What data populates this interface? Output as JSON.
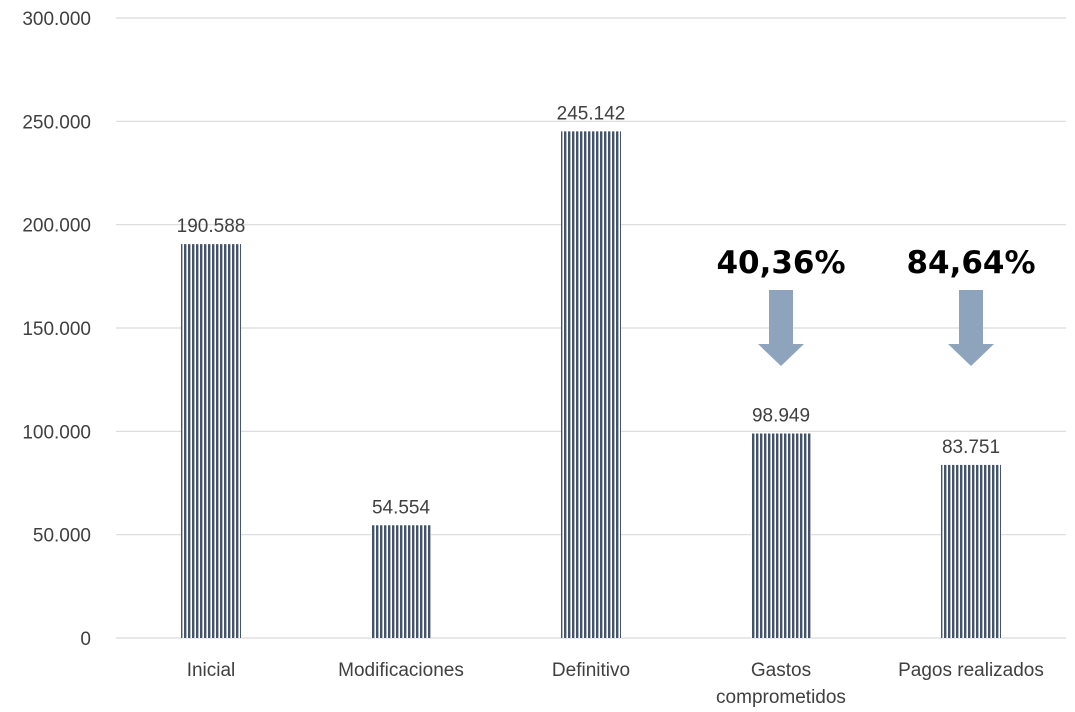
{
  "chart_data": {
    "type": "bar",
    "categories": [
      "Inicial",
      "Modificaciones",
      "Definitivo",
      "Gastos comprometidos",
      "Pagos realizados"
    ],
    "values": [
      190588,
      54554,
      245142,
      98949,
      83751
    ],
    "data_labels": [
      "190.588",
      "54.554",
      "245.142",
      "98.949",
      "83.751"
    ],
    "ylim": [
      0,
      300000
    ],
    "yticks": [
      0,
      50000,
      100000,
      150000,
      200000,
      250000,
      300000
    ],
    "ytick_labels": [
      "0",
      "50.000",
      "100.000",
      "150.000",
      "200.000",
      "250.000",
      "300.000"
    ],
    "grid": true,
    "legend": "none",
    "title": "",
    "xlabel": "",
    "ylabel": "",
    "annotations": [
      {
        "category_index": 3,
        "text": "40,36%",
        "arrow": "down"
      },
      {
        "category_index": 4,
        "text": "84,64%",
        "arrow": "down"
      }
    ],
    "colors": {
      "bar_stripe": "#44546a",
      "bar_gap": "#ffffff",
      "arrow": "#8ea4bd",
      "grid": "#d9d9d9",
      "text": "#404040"
    }
  }
}
